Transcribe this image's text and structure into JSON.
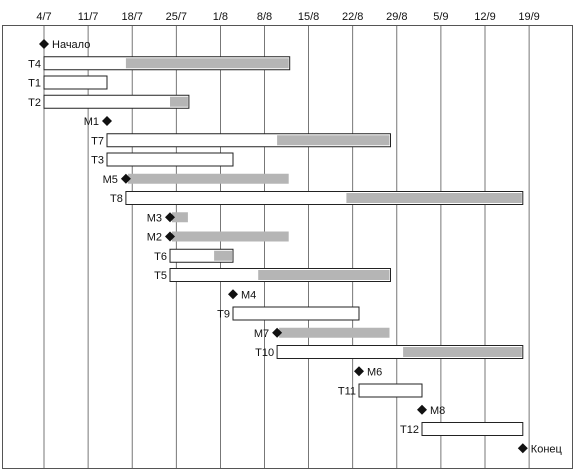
{
  "chart_data": {
    "type": "gantt",
    "x_axis": {
      "ticks": [
        "4/7",
        "11/7",
        "18/7",
        "25/7",
        "1/8",
        "8/8",
        "15/8",
        "22/8",
        "29/8",
        "5/9",
        "12/9",
        "19/9"
      ],
      "tick_interval_days": 7
    },
    "grid": true,
    "rows": [
      {
        "label": "Начало",
        "kind": "milestone",
        "day": 0,
        "label_side": "right"
      },
      {
        "label": "T4",
        "kind": "task",
        "start": 0,
        "end": 39,
        "slack_start": 13
      },
      {
        "label": "T1",
        "kind": "task",
        "start": 0,
        "end": 10
      },
      {
        "label": "T2",
        "kind": "task",
        "start": 0,
        "end": 23,
        "slack_start": 20
      },
      {
        "label": "M1",
        "kind": "milestone",
        "day": 10,
        "label_side": "left"
      },
      {
        "label": "T7",
        "kind": "task",
        "start": 10,
        "end": 55,
        "slack_start": 37
      },
      {
        "label": "T3",
        "kind": "task",
        "start": 10,
        "end": 30
      },
      {
        "label": "M5",
        "kind": "milestone",
        "day": 13,
        "label_side": "left",
        "slack_end": 39
      },
      {
        "label": "T8",
        "kind": "task",
        "start": 13,
        "end": 76,
        "slack_start": 48
      },
      {
        "label": "M3",
        "kind": "milestone",
        "day": 20,
        "label_side": "left",
        "slack_end": 23
      },
      {
        "label": "M2",
        "kind": "milestone",
        "day": 20,
        "label_side": "left",
        "slack_end": 39
      },
      {
        "label": "T6",
        "kind": "task",
        "start": 20,
        "end": 30,
        "slack_start": 27
      },
      {
        "label": "T5",
        "kind": "task",
        "start": 20,
        "end": 55,
        "slack_start": 34
      },
      {
        "label": "M4",
        "kind": "milestone",
        "day": 30,
        "label_side": "right"
      },
      {
        "label": "T9",
        "kind": "task",
        "start": 30,
        "end": 50
      },
      {
        "label": "M7",
        "kind": "milestone",
        "day": 37,
        "label_side": "left",
        "slack_end": 55
      },
      {
        "label": "T10",
        "kind": "task",
        "start": 37,
        "end": 76,
        "slack_start": 57
      },
      {
        "label": "M6",
        "kind": "milestone",
        "day": 50,
        "label_side": "right"
      },
      {
        "label": "T11",
        "kind": "task",
        "start": 50,
        "end": 60
      },
      {
        "label": "M8",
        "kind": "milestone",
        "day": 60,
        "label_side": "right"
      },
      {
        "label": "T12",
        "kind": "task",
        "start": 60,
        "end": 76
      },
      {
        "label": "Конец",
        "kind": "milestone",
        "day": 76,
        "label_side": "right"
      }
    ],
    "colors": {
      "task_fill": "#ffffff",
      "slack_fill": "#b5b5b5",
      "outline": "#222222",
      "grid": "#555555"
    }
  }
}
